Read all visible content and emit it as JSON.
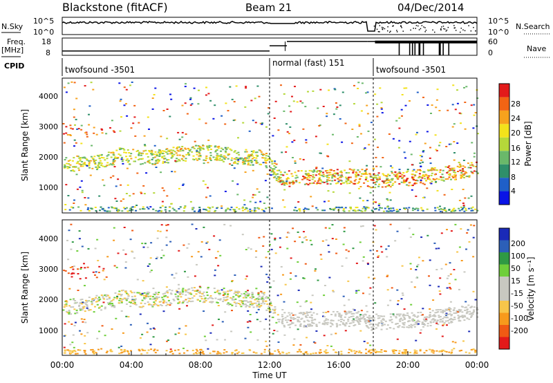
{
  "header": {
    "station": "Blackstone (fitACF)",
    "beam": "Beam 21",
    "date": "04/Dec/2014"
  },
  "side_labels": {
    "nsky": "N.Sky",
    "freq_line1": "Freq.",
    "freq_line2": "[MHz]",
    "cpid": "CPID",
    "nsearch": "N.Search",
    "nave": "Nave"
  },
  "cpid_segments": [
    {
      "label": "twofsound -3501",
      "start": "00:00"
    },
    {
      "label": "normal (fast) 151",
      "start": "12:00"
    },
    {
      "label": "twofsound -3501",
      "start": "17:40"
    }
  ],
  "colors": {
    "power_scale": [
      "#0a14e6",
      "#1f5fc8",
      "#2f8f6a",
      "#6ab86a",
      "#b5d83a",
      "#f3e21b",
      "#f7a21d",
      "#f26414",
      "#e31a1a"
    ],
    "velocity_scale": [
      "#e31a1a",
      "#f05a14",
      "#f79a1c",
      "#f7c64a",
      "#c8c8c0",
      "#c8c8c0",
      "#6fcf3a",
      "#2f9a44",
      "#2c5fb8",
      "#1a2ab8"
    ]
  },
  "chart_data": [
    {
      "type": "line",
      "title": "N.Sky / N.Search",
      "x_range": [
        "00:00",
        "24:00"
      ],
      "y_ticks": [
        "10^5",
        "10^0"
      ],
      "right_ticks": [
        "10^5",
        "10^0"
      ]
    },
    {
      "type": "line",
      "title": "Freq. / Nave",
      "left_ticks": [
        "18",
        "8"
      ],
      "right_ticks": [
        "60",
        "0"
      ],
      "freq_mhz_segments": [
        {
          "x": [
            "00:00",
            "12:00"
          ],
          "value": 10.5
        },
        {
          "x": [
            "12:00",
            "13:00"
          ],
          "value": 13.5
        },
        {
          "x": [
            "13:00",
            "17:40"
          ],
          "value": 16
        },
        {
          "x": [
            "17:40",
            "24:00"
          ],
          "value": 16
        }
      ]
    },
    {
      "type": "heatmap",
      "ylabel": "Slant Range [km]",
      "ylim": [
        180,
        4600
      ],
      "y_ticks": [
        "1000",
        "2000",
        "3000",
        "4000"
      ],
      "x_ticks": [
        "00:00",
        "04:00",
        "08:00",
        "12:00",
        "16:00",
        "20:00",
        "00:00"
      ],
      "colorbar_label": "Power [dB]",
      "colorbar_ticks": [
        "4",
        "8",
        "12",
        "16",
        "20",
        "24",
        "28"
      ]
    },
    {
      "type": "heatmap",
      "ylabel": "Slant Range [km]",
      "ylim": [
        180,
        4600
      ],
      "y_ticks": [
        "1000",
        "2000",
        "3000",
        "4000"
      ],
      "x_ticks": [
        "00:00",
        "04:00",
        "08:00",
        "12:00",
        "16:00",
        "20:00",
        "00:00"
      ],
      "xlabel": "Time UT",
      "colorbar_label": "Velocity [m s⁻¹]",
      "colorbar_ticks": [
        "200",
        "100",
        "50",
        "15",
        "-15",
        "-50",
        "-100",
        "-200"
      ]
    }
  ]
}
